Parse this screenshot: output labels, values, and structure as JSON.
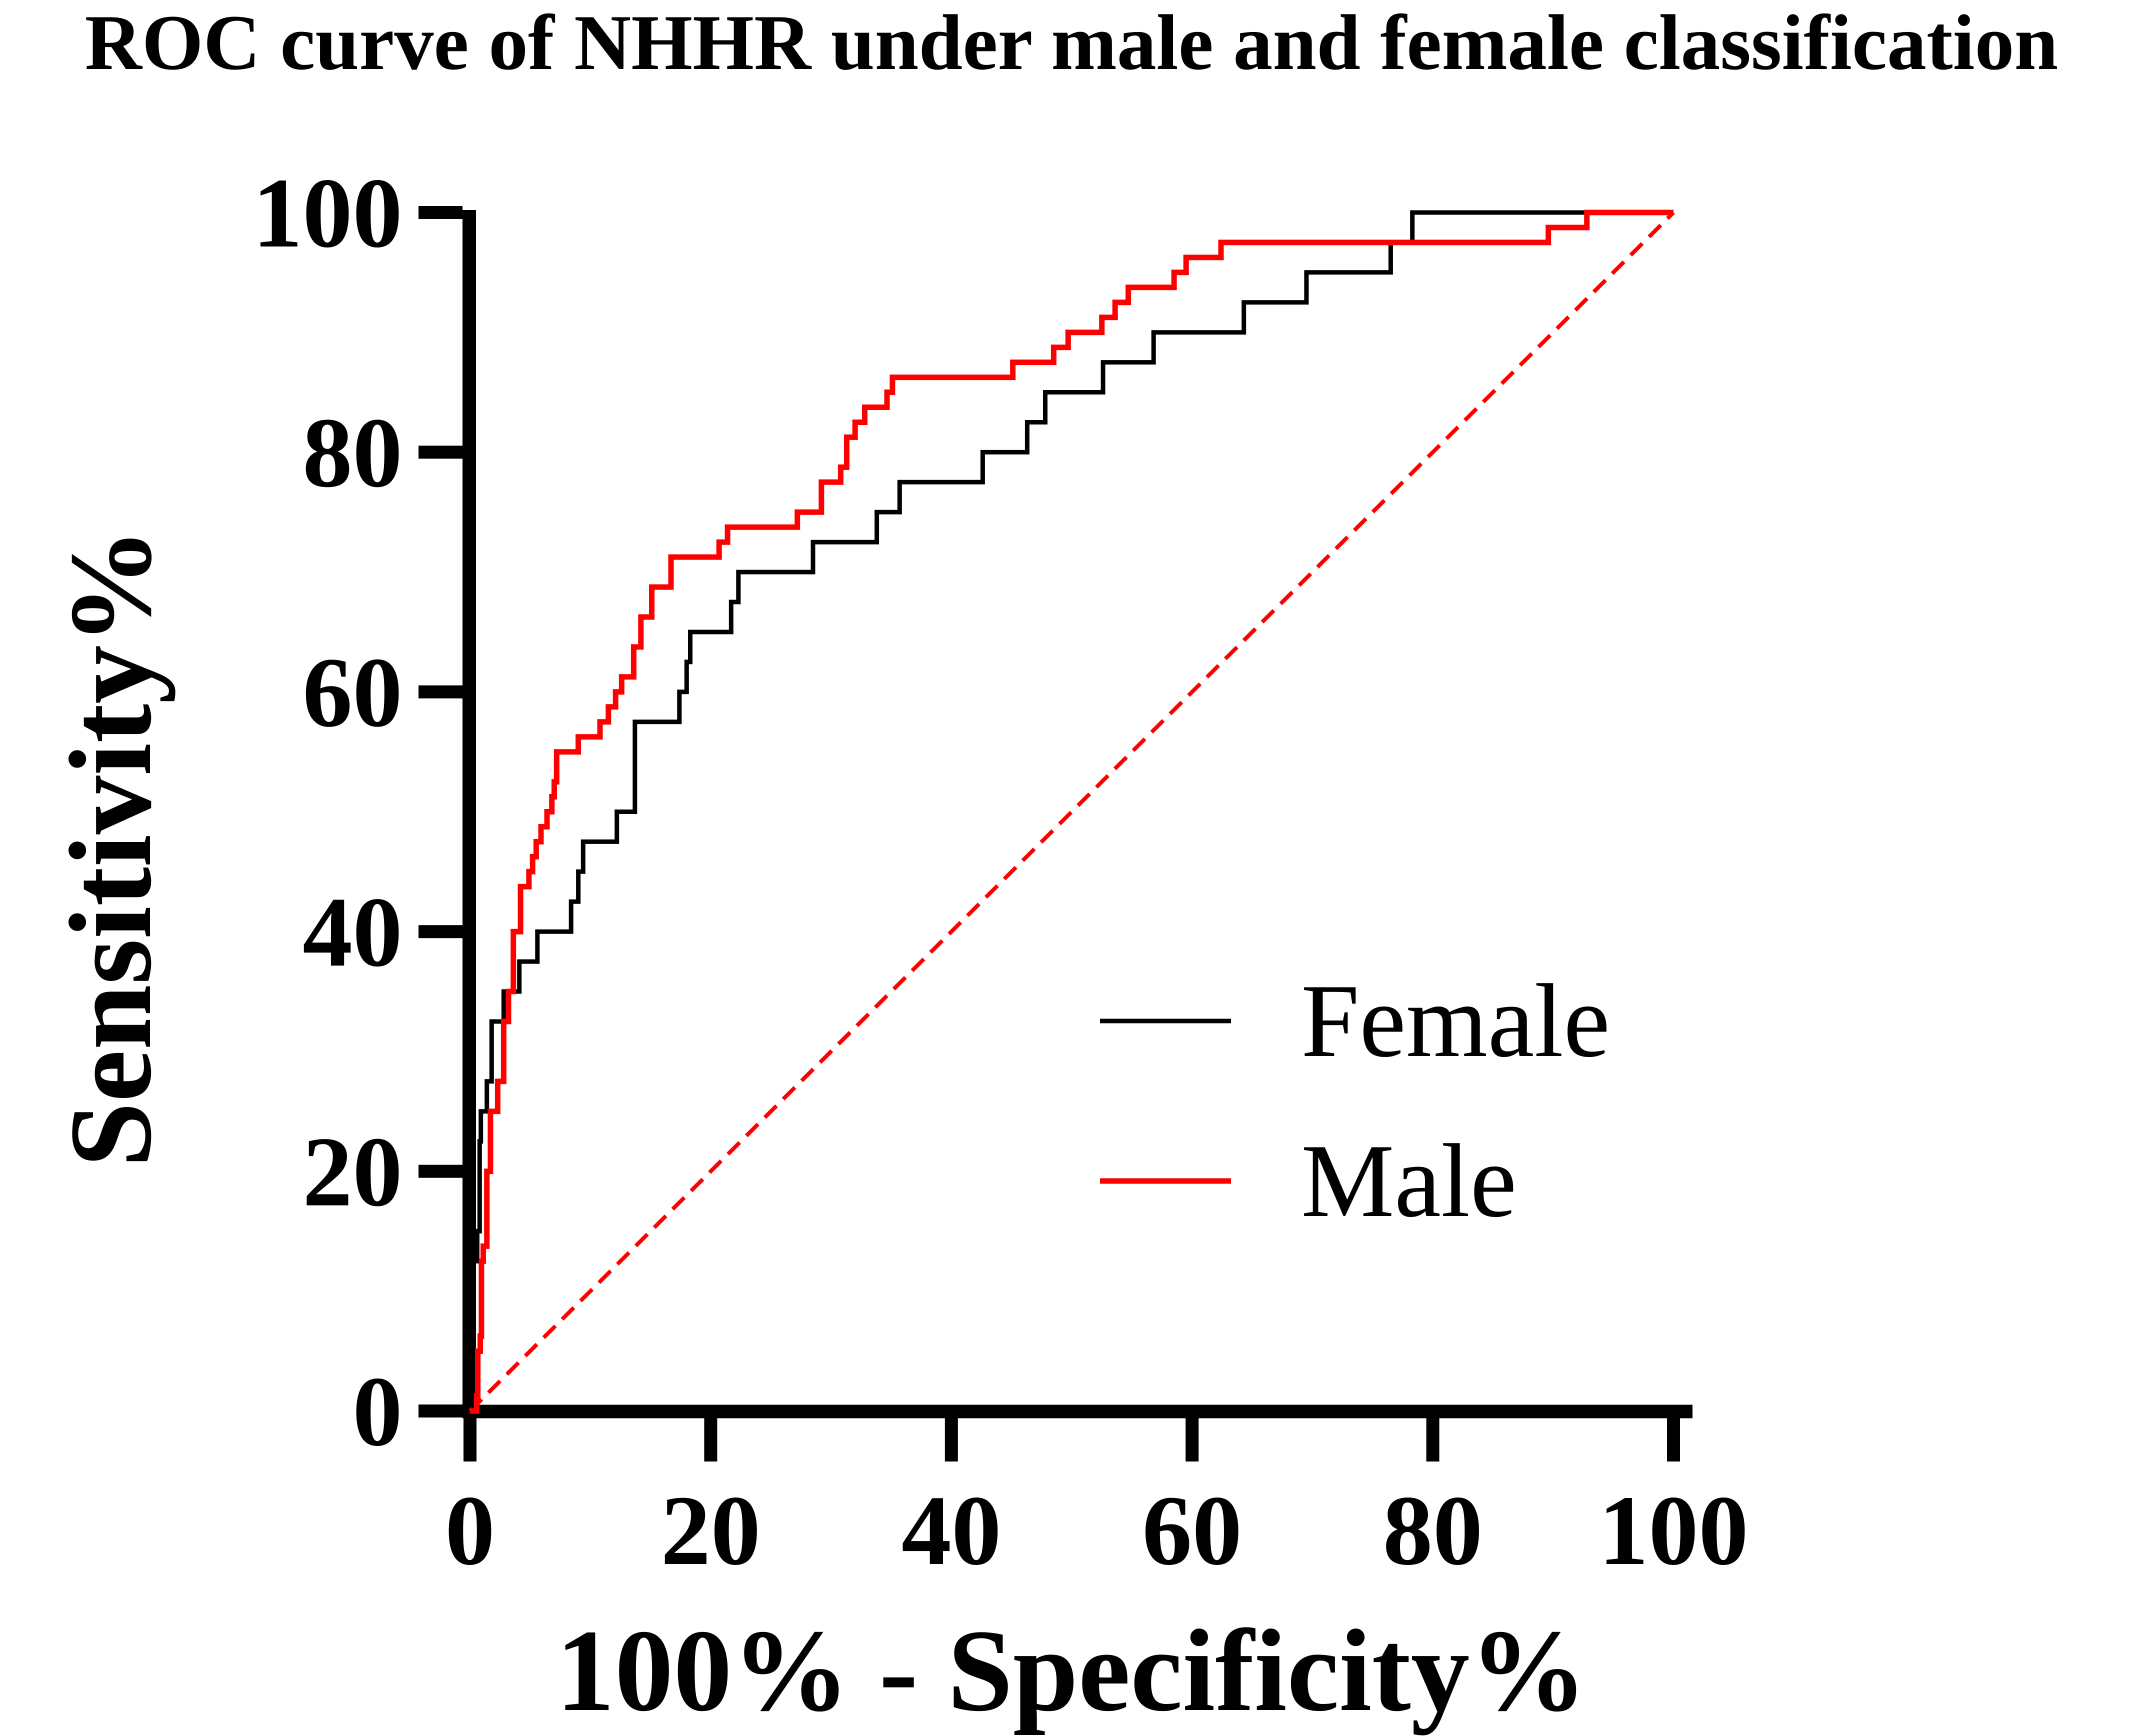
{
  "figure": {
    "background_color": "#ffffff",
    "accent_color": "#FF0000",
    "axis_color": "#000000"
  },
  "chart_data": {
    "type": "line",
    "subtype": "roc-step-curves",
    "title": "ROC curve of NHHR under male and female classification",
    "xlabel": "100% - Specificity%",
    "ylabel": "Sensitivity%",
    "xlim": [
      0,
      100
    ],
    "ylim": [
      0,
      100
    ],
    "x_ticks": [
      "0",
      "20",
      "40",
      "60",
      "80",
      "100"
    ],
    "x_tick_values": [
      0,
      20,
      40,
      60,
      80,
      100
    ],
    "y_ticks": [
      "0",
      "20",
      "40",
      "60",
      "80",
      "100"
    ],
    "y_tick_values": [
      0,
      20,
      40,
      60,
      80,
      100
    ],
    "grid": false,
    "legend_position": "right-middle",
    "series": [
      {
        "name": "Female",
        "color": "#000000",
        "stroke_width": 9,
        "line_style": "solid",
        "points": [
          [
            0,
            0
          ],
          [
            0.3,
            0
          ],
          [
            0.3,
            12.5
          ],
          [
            0.6,
            12.5
          ],
          [
            0.6,
            15
          ],
          [
            0.8,
            15
          ],
          [
            0.8,
            22.5
          ],
          [
            0.9,
            22.5
          ],
          [
            0.9,
            25
          ],
          [
            1.4,
            25
          ],
          [
            1.4,
            27.5
          ],
          [
            1.8,
            27.5
          ],
          [
            1.8,
            32.5
          ],
          [
            2.8,
            32.5
          ],
          [
            2.8,
            35
          ],
          [
            4.1,
            35
          ],
          [
            4.1,
            37.5
          ],
          [
            5.6,
            37.5
          ],
          [
            5.6,
            40
          ],
          [
            8.4,
            40
          ],
          [
            8.4,
            42.5
          ],
          [
            9.0,
            42.5
          ],
          [
            9.0,
            45
          ],
          [
            9.4,
            45
          ],
          [
            9.4,
            47.5
          ],
          [
            12.2,
            47.5
          ],
          [
            12.2,
            50
          ],
          [
            13.7,
            50
          ],
          [
            13.7,
            57.5
          ],
          [
            17.4,
            57.5
          ],
          [
            17.4,
            60
          ],
          [
            18.0,
            60
          ],
          [
            18.0,
            62.5
          ],
          [
            18.3,
            62.5
          ],
          [
            18.3,
            65
          ],
          [
            21.7,
            65
          ],
          [
            21.7,
            67.5
          ],
          [
            22.3,
            67.5
          ],
          [
            22.3,
            70
          ],
          [
            28.5,
            70
          ],
          [
            28.5,
            72.5
          ],
          [
            33.8,
            72.5
          ],
          [
            33.8,
            75
          ],
          [
            35.7,
            75
          ],
          [
            35.7,
            77.5
          ],
          [
            42.6,
            77.5
          ],
          [
            42.6,
            80
          ],
          [
            46.3,
            80
          ],
          [
            46.3,
            82.5
          ],
          [
            47.8,
            82.5
          ],
          [
            47.8,
            85
          ],
          [
            52.6,
            85
          ],
          [
            52.6,
            87.5
          ],
          [
            56.8,
            87.5
          ],
          [
            56.8,
            90
          ],
          [
            64.3,
            90
          ],
          [
            64.3,
            92.5
          ],
          [
            69.5,
            92.5
          ],
          [
            69.5,
            95
          ],
          [
            76.5,
            95
          ],
          [
            76.5,
            97.5
          ],
          [
            78.3,
            97.5
          ],
          [
            78.3,
            100
          ],
          [
            100,
            100
          ]
        ]
      },
      {
        "name": "Male",
        "color": "#FF0000",
        "stroke_width": 11,
        "line_style": "solid",
        "points": [
          [
            0,
            0
          ],
          [
            0.55,
            0
          ],
          [
            0.55,
            1.25
          ],
          [
            0.65,
            1.25
          ],
          [
            0.65,
            5
          ],
          [
            0.85,
            5
          ],
          [
            0.85,
            6.25
          ],
          [
            0.95,
            6.25
          ],
          [
            0.95,
            12.5
          ],
          [
            1.1,
            12.5
          ],
          [
            1.1,
            13.75
          ],
          [
            1.4,
            13.75
          ],
          [
            1.4,
            20
          ],
          [
            1.7,
            20
          ],
          [
            1.7,
            25
          ],
          [
            2.3,
            25
          ],
          [
            2.3,
            27.5
          ],
          [
            2.8,
            27.5
          ],
          [
            2.8,
            32.5
          ],
          [
            3.2,
            32.5
          ],
          [
            3.2,
            35
          ],
          [
            3.6,
            35
          ],
          [
            3.6,
            40
          ],
          [
            4.2,
            40
          ],
          [
            4.2,
            43.75
          ],
          [
            4.9,
            43.75
          ],
          [
            4.9,
            45
          ],
          [
            5.2,
            45
          ],
          [
            5.2,
            46.25
          ],
          [
            5.5,
            46.25
          ],
          [
            5.5,
            47.5
          ],
          [
            5.9,
            47.5
          ],
          [
            5.9,
            48.75
          ],
          [
            6.4,
            48.75
          ],
          [
            6.4,
            50
          ],
          [
            6.8,
            50
          ],
          [
            6.8,
            51.25
          ],
          [
            7.0,
            51.25
          ],
          [
            7.0,
            52.5
          ],
          [
            7.2,
            52.5
          ],
          [
            7.2,
            55
          ],
          [
            9.0,
            55
          ],
          [
            9.0,
            56.25
          ],
          [
            10.8,
            56.25
          ],
          [
            10.8,
            57.5
          ],
          [
            11.5,
            57.5
          ],
          [
            11.5,
            58.75
          ],
          [
            12.1,
            58.75
          ],
          [
            12.1,
            60
          ],
          [
            12.6,
            60
          ],
          [
            12.6,
            61.25
          ],
          [
            13.6,
            61.25
          ],
          [
            13.6,
            63.75
          ],
          [
            14.2,
            63.75
          ],
          [
            14.2,
            66.25
          ],
          [
            15.1,
            66.25
          ],
          [
            15.1,
            68.75
          ],
          [
            16.7,
            68.75
          ],
          [
            16.7,
            71.25
          ],
          [
            20.7,
            71.25
          ],
          [
            20.7,
            72.5
          ],
          [
            21.4,
            72.5
          ],
          [
            21.4,
            73.75
          ],
          [
            27.2,
            73.75
          ],
          [
            27.2,
            75
          ],
          [
            29.2,
            75
          ],
          [
            29.2,
            77.5
          ],
          [
            30.8,
            77.5
          ],
          [
            30.8,
            78.75
          ],
          [
            31.3,
            78.75
          ],
          [
            31.3,
            81.25
          ],
          [
            32.0,
            81.25
          ],
          [
            32.0,
            82.5
          ],
          [
            32.8,
            82.5
          ],
          [
            32.8,
            83.75
          ],
          [
            34.65,
            83.75
          ],
          [
            34.65,
            85
          ],
          [
            35.1,
            85
          ],
          [
            35.1,
            86.25
          ],
          [
            45.1,
            86.25
          ],
          [
            45.1,
            87.5
          ],
          [
            48.5,
            87.5
          ],
          [
            48.5,
            88.75
          ],
          [
            49.7,
            88.75
          ],
          [
            49.7,
            90
          ],
          [
            52.5,
            90
          ],
          [
            52.5,
            91.25
          ],
          [
            53.6,
            91.25
          ],
          [
            53.6,
            92.5
          ],
          [
            54.7,
            92.5
          ],
          [
            54.7,
            93.75
          ],
          [
            58.5,
            93.75
          ],
          [
            58.5,
            95
          ],
          [
            59.5,
            95
          ],
          [
            59.5,
            96.25
          ],
          [
            62.4,
            96.25
          ],
          [
            62.4,
            97.5
          ],
          [
            89.6,
            97.5
          ],
          [
            89.6,
            98.75
          ],
          [
            92.8,
            98.75
          ],
          [
            92.8,
            100
          ],
          [
            100,
            100
          ]
        ]
      }
    ],
    "reference_line": {
      "name": "chance diagonal",
      "color": "#FF0000",
      "style": "dashed",
      "stroke_width": 8,
      "from": [
        0,
        0
      ],
      "to": [
        100,
        100
      ]
    }
  },
  "legend": {
    "items": [
      {
        "label": "Female",
        "color": "#000000"
      },
      {
        "label": "Male",
        "color": "#FF0000"
      }
    ]
  }
}
